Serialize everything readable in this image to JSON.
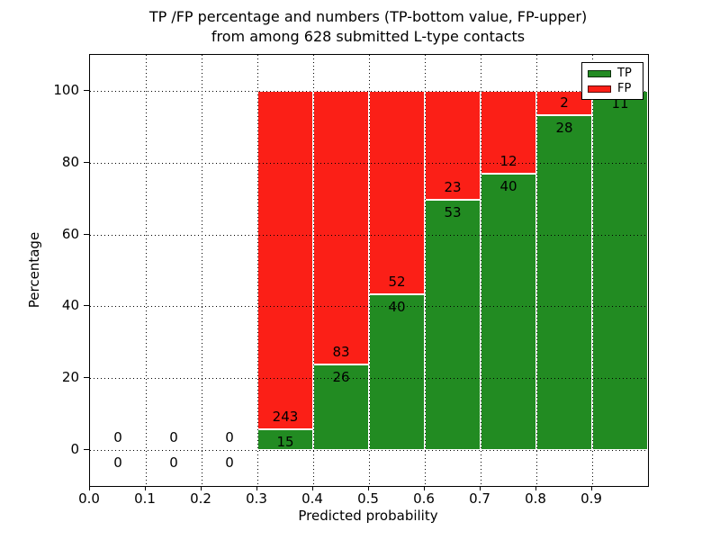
{
  "chart": {
    "title_line1": "TP /FP percentage and numbers (TP-bottom value, FP-upper)",
    "title_line2": "from among 628 submitted L-type contacts",
    "xlabel": "Predicted probability",
    "ylabel": "Percentage"
  },
  "chart_data": {
    "type": "bar",
    "stacked": true,
    "normalized": "each bin scaled to 100%",
    "title": "TP /FP percentage and numbers (TP-bottom value, FP-upper) from among 628 submitted L-type contacts",
    "xlabel": "Predicted probability",
    "ylabel": "Percentage",
    "total_contacts": 628,
    "xlim": [
      0.0,
      1.0
    ],
    "ylim": [
      -10,
      110
    ],
    "grid": "dotted black, on",
    "legend_position": "upper right",
    "xticks": [
      "0.0",
      "0.1",
      "0.2",
      "0.3",
      "0.4",
      "0.5",
      "0.6",
      "0.7",
      "0.8",
      "0.9"
    ],
    "xtick_values": [
      0.0,
      0.1,
      0.2,
      0.3,
      0.4,
      0.5,
      0.6,
      0.7,
      0.8,
      0.9
    ],
    "yticks": [
      "0",
      "20",
      "40",
      "60",
      "80",
      "100"
    ],
    "ytick_values": [
      0,
      20,
      40,
      60,
      80,
      100
    ],
    "categories": [
      "0.0-0.1",
      "0.1-0.2",
      "0.2-0.3",
      "0.3-0.4",
      "0.4-0.5",
      "0.5-0.6",
      "0.6-0.7",
      "0.7-0.8",
      "0.8-0.9",
      "0.9-1.0"
    ],
    "series": [
      {
        "name": "TP",
        "color": "#228b22",
        "values": [
          0,
          0,
          0,
          15,
          26,
          40,
          53,
          40,
          28,
          11
        ]
      },
      {
        "name": "FP",
        "color": "#fb1f17",
        "values": [
          0,
          0,
          0,
          243,
          83,
          52,
          23,
          12,
          2,
          0
        ]
      }
    ],
    "bins": [
      {
        "x0": 0.0,
        "x1": 0.1,
        "tp": 0,
        "fp": 0,
        "tp_label": "0",
        "fp_label": "0"
      },
      {
        "x0": 0.1,
        "x1": 0.2,
        "tp": 0,
        "fp": 0,
        "tp_label": "0",
        "fp_label": "0"
      },
      {
        "x0": 0.2,
        "x1": 0.3,
        "tp": 0,
        "fp": 0,
        "tp_label": "0",
        "fp_label": "0"
      },
      {
        "x0": 0.3,
        "x1": 0.4,
        "tp": 15,
        "fp": 243,
        "tp_label": "15",
        "fp_label": "243"
      },
      {
        "x0": 0.4,
        "x1": 0.5,
        "tp": 26,
        "fp": 83,
        "tp_label": "26",
        "fp_label": "83"
      },
      {
        "x0": 0.5,
        "x1": 0.6,
        "tp": 40,
        "fp": 52,
        "tp_label": "40",
        "fp_label": "52"
      },
      {
        "x0": 0.6,
        "x1": 0.7,
        "tp": 53,
        "fp": 23,
        "tp_label": "53",
        "fp_label": "23"
      },
      {
        "x0": 0.7,
        "x1": 0.8,
        "tp": 40,
        "fp": 12,
        "tp_label": "40",
        "fp_label": "12"
      },
      {
        "x0": 0.8,
        "x1": 0.9,
        "tp": 28,
        "fp": 2,
        "tp_label": "28",
        "fp_label": "2"
      },
      {
        "x0": 0.9,
        "x1": 1.0,
        "tp": 11,
        "fp": 0,
        "tp_label": "11",
        "fp_label": ""
      }
    ],
    "legend": {
      "entries": [
        {
          "label": "TP",
          "color": "#228b22"
        },
        {
          "label": "FP",
          "color": "#fb1f17"
        }
      ]
    }
  },
  "colors": {
    "tp": "#228b22",
    "fp": "#fb1f17",
    "axis": "#000000",
    "background": "#ffffff"
  }
}
